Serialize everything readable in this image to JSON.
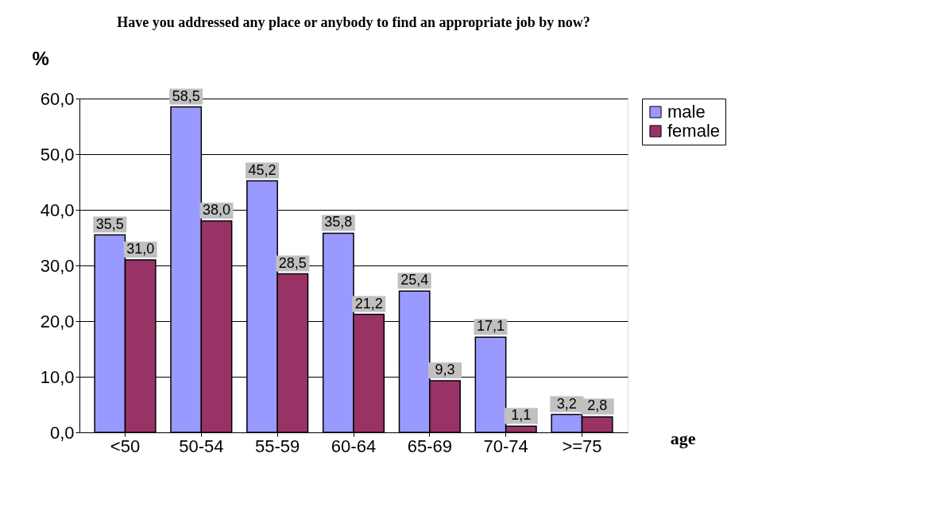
{
  "chart_data": {
    "type": "bar",
    "title": "Have you addressed  any place or anybody to find an appropriate job by now?",
    "xlabel": "age",
    "ylabel": "%",
    "categories": [
      "<50",
      "50-54",
      "55-59",
      "60-64",
      "65-69",
      "70-74",
      ">=75"
    ],
    "series": [
      {
        "name": "male",
        "color": "#9999ff",
        "values": [
          35.5,
          58.5,
          45.2,
          35.8,
          25.4,
          17.1,
          3.2
        ],
        "value_labels": [
          "35,5",
          "58,5",
          "45,2",
          "35,8",
          "25,4",
          "17,1",
          "3,2"
        ]
      },
      {
        "name": "female",
        "color": "#993366",
        "values": [
          31.0,
          38.0,
          28.5,
          21.2,
          9.3,
          1.1,
          2.8
        ],
        "value_labels": [
          "31,0",
          "38,0",
          "28,5",
          "21,2",
          "9,3",
          "1,1",
          "2,8"
        ]
      }
    ],
    "ylim": [
      0,
      60
    ],
    "yticks": [
      {
        "value": 0,
        "label": "0,0"
      },
      {
        "value": 10,
        "label": "10,0"
      },
      {
        "value": 20,
        "label": "20,0"
      },
      {
        "value": 30,
        "label": "30,0"
      },
      {
        "value": 40,
        "label": "40,0"
      },
      {
        "value": 50,
        "label": "50,0"
      },
      {
        "value": 60,
        "label": "60,0"
      }
    ],
    "grid": "y",
    "legend": "right"
  }
}
